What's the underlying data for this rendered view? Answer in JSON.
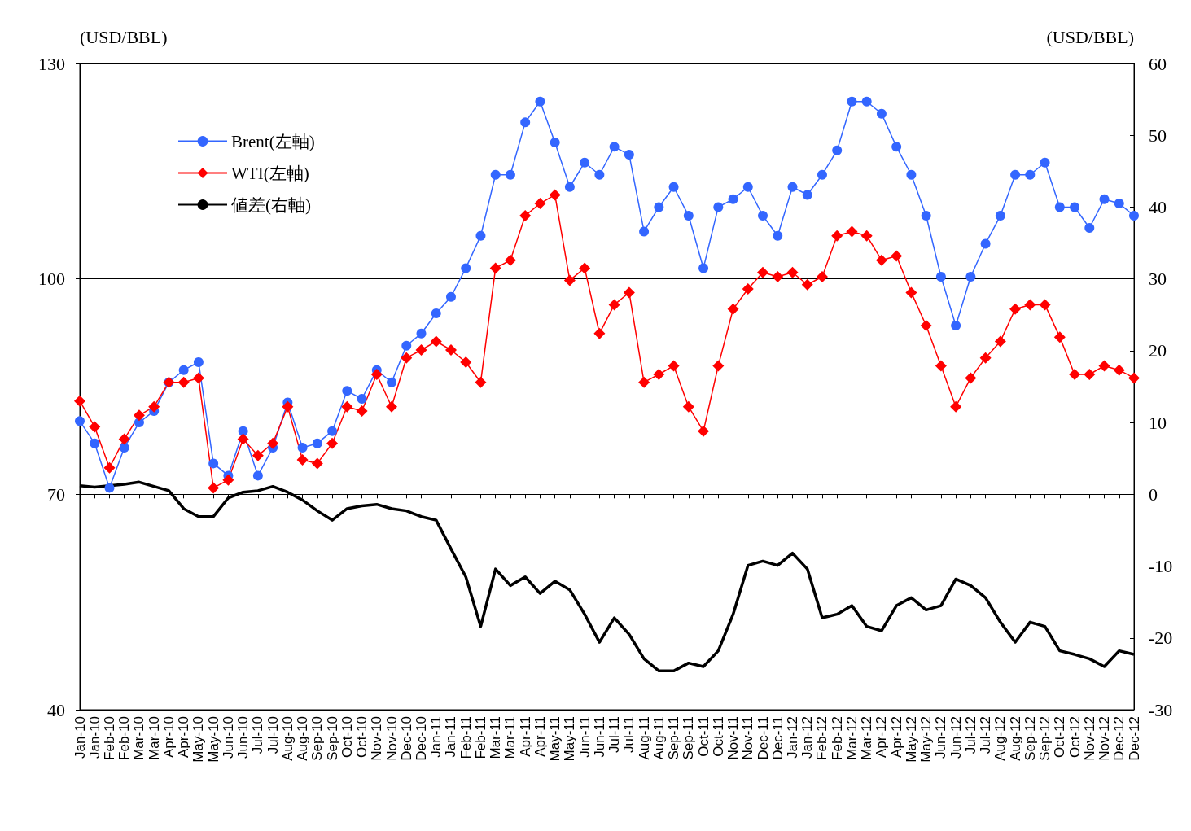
{
  "chart_data": {
    "type": "line",
    "ylabel": "(USD/BBL)",
    "y2label": "(USD/BBL)",
    "categories": [
      "Jan-10",
      "Jan-10",
      "Feb-10",
      "Feb-10",
      "Mar-10",
      "Mar-10",
      "Apr-10",
      "Apr-10",
      "May-10",
      "May-10",
      "Jun-10",
      "Jun-10",
      "Jul-10",
      "Jul-10",
      "Aug-10",
      "Aug-10",
      "Sep-10",
      "Sep-10",
      "Oct-10",
      "Oct-10",
      "Nov-10",
      "Nov-10",
      "Dec-10",
      "Dec-10",
      "Jan-11",
      "Jan-11",
      "Feb-11",
      "Feb-11",
      "Mar-11",
      "Mar-11",
      "Apr-11",
      "Apr-11",
      "May-11",
      "May-11",
      "Jun-11",
      "Jun-11",
      "Jul-11",
      "Jul-11",
      "Aug-11",
      "Aug-11",
      "Sep-11",
      "Sep-11",
      "Oct-11",
      "Oct-11",
      "Nov-11",
      "Nov-11",
      "Dec-11",
      "Dec-11",
      "Jan-12",
      "Jan-12",
      "Feb-12",
      "Feb-12",
      "Mar-12",
      "Mar-12",
      "Apr-12",
      "Apr-12",
      "May-12",
      "May-12",
      "Jun-12",
      "Jun-12",
      "Jul-12",
      "Jul-12",
      "Aug-12",
      "Aug-12",
      "Sep-12",
      "Sep-12",
      "Oct-12",
      "Oct-12",
      "Nov-12",
      "Nov-12",
      "Dec-12",
      "Dec-12"
    ],
    "series": [
      {
        "name": "Brent(左軸)",
        "color": "#3366ff",
        "marker": "circle",
        "values": [
          80.2,
          77.1,
          70.9,
          76.5,
          80,
          81.6,
          85.6,
          87.3,
          88.4,
          74.3,
          72.6,
          78.8,
          72.6,
          76.5,
          82.8,
          76.5,
          77.1,
          78.8,
          84.4,
          83.3,
          87.3,
          85.6,
          90.7,
          92.4,
          95.2,
          97.5,
          101.5,
          106,
          114.5,
          114.5,
          121.8,
          124.7,
          119,
          112.8,
          116.2,
          114.5,
          118.4,
          117.3,
          106.6,
          110,
          112.8,
          108.8,
          101.5,
          110,
          111.1,
          112.8,
          108.8,
          106,
          112.8,
          111.7,
          114.5,
          117.9,
          124.7,
          124.7,
          123,
          118.4,
          114.5,
          108.8,
          100.3,
          93.5,
          100.3,
          104.9,
          108.8,
          114.5,
          114.5,
          116.2,
          110,
          110,
          107.1,
          111.1,
          110.5,
          108.8
        ]
      },
      {
        "name": "WTI(左軸)",
        "color": "#ff0000",
        "marker": "diamond",
        "values": [
          83,
          79.4,
          73.7,
          77.7,
          81,
          82.2,
          85.6,
          85.6,
          86.2,
          70.9,
          72,
          77.7,
          75.4,
          77.1,
          82.2,
          74.8,
          74.3,
          77.1,
          82.2,
          81.6,
          86.7,
          82.2,
          89,
          90.1,
          91.3,
          90.1,
          88.4,
          85.6,
          101.5,
          102.6,
          108.8,
          110.5,
          111.7,
          99.8,
          101.5,
          92.4,
          96.4,
          98.1,
          85.6,
          86.7,
          87.9,
          82.2,
          78.8,
          87.9,
          95.8,
          98.6,
          100.9,
          100.3,
          100.9,
          99.2,
          100.3,
          106,
          106.6,
          106,
          102.6,
          103.2,
          98.1,
          93.5,
          87.9,
          82.2,
          86.2,
          89,
          91.3,
          95.8,
          96.4,
          96.4,
          91.9,
          86.7,
          86.7,
          87.9,
          87.3,
          86.2
        ]
      },
      {
        "name": "値差(右軸)",
        "color": "#000000",
        "marker": "none",
        "axis": "y2",
        "values": [
          1.2,
          1,
          1.2,
          1.4,
          1.7,
          1.1,
          0.5,
          -2,
          -3.1,
          -3.1,
          -0.5,
          0.3,
          0.5,
          1.1,
          0.3,
          -0.8,
          -2.3,
          -3.6,
          -2,
          -1.6,
          -1.4,
          -2,
          -2.3,
          -3.1,
          -3.6,
          -7.6,
          -11.5,
          -18.4,
          -10.4,
          -12.7,
          -11.5,
          -13.8,
          -12.1,
          -13.3,
          -16.7,
          -20.6,
          -17.2,
          -19.5,
          -22.9,
          -24.6,
          -24.6,
          -23.5,
          -24,
          -21.8,
          -16.7,
          -9.9,
          -9.3,
          -9.9,
          -8.2,
          -10.4,
          -17.2,
          -16.7,
          -15.5,
          -18.4,
          -19,
          -15.5,
          -14.4,
          -16.1,
          -15.5,
          -11.8,
          -12.7,
          -14.4,
          -17.8,
          -20.6,
          -17.8,
          -18.4,
          -21.8,
          -22.3,
          -22.9,
          -24,
          -21.8,
          -22.3
        ]
      }
    ],
    "ylim": [
      40,
      130
    ],
    "yticks": [
      40,
      70,
      100,
      130
    ],
    "y2lim": [
      -30,
      60
    ],
    "y2ticks": [
      -30,
      -20,
      -10,
      0,
      10,
      20,
      30,
      40,
      50,
      60
    ],
    "grid": "y",
    "legend": "top left"
  }
}
